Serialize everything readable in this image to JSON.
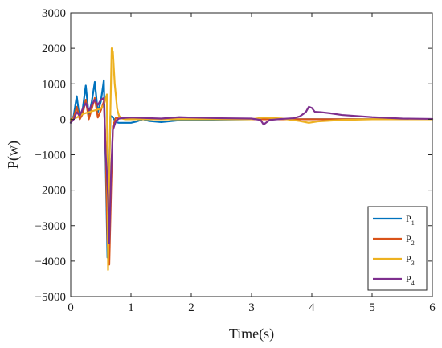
{
  "chart_data": {
    "type": "line",
    "xlabel": "Time(s)",
    "ylabel": "P(w)",
    "xlim": [
      0,
      6
    ],
    "ylim": [
      -5000,
      3000
    ],
    "xticks": [
      0,
      1,
      2,
      3,
      4,
      5,
      6
    ],
    "xtick_labels": [
      "0",
      "1",
      "2",
      "3",
      "4",
      "5",
      "6"
    ],
    "yticks": [
      3000,
      2000,
      1000,
      0,
      -1000,
      -2000,
      -3000,
      -4000,
      -5000
    ],
    "ytick_labels": [
      "3000",
      "2000",
      "1000",
      "0",
      "−1000",
      "−2000",
      "−3000",
      "−4000",
      "−5000"
    ],
    "grid": false,
    "legend_position": "bottom-right",
    "series": [
      {
        "name": "P1",
        "label_main": "P",
        "label_sub": "1",
        "color": "#0072BD",
        "x": [
          0,
          0.05,
          0.1,
          0.15,
          0.2,
          0.25,
          0.3,
          0.35,
          0.4,
          0.45,
          0.5,
          0.55,
          0.58,
          0.61,
          0.63,
          0.66,
          0.7,
          0.75,
          0.8,
          0.9,
          1.0,
          1.1,
          1.2,
          1.3,
          1.5,
          1.8,
          2.0,
          2.5,
          3.0,
          3.5,
          4.0,
          4.5,
          5.0,
          6.0
        ],
        "y": [
          -100,
          100,
          650,
          0,
          300,
          950,
          100,
          500,
          1050,
          200,
          500,
          1100,
          -1200,
          -3900,
          -2000,
          100,
          50,
          -80,
          -100,
          -100,
          -100,
          -60,
          0,
          -50,
          -80,
          -30,
          -20,
          -10,
          0,
          0,
          0,
          0,
          0,
          0
        ]
      },
      {
        "name": "P2",
        "label_main": "P",
        "label_sub": "2",
        "color": "#D95319",
        "x": [
          0,
          0.05,
          0.1,
          0.15,
          0.2,
          0.25,
          0.3,
          0.35,
          0.4,
          0.45,
          0.5,
          0.55,
          0.58,
          0.61,
          0.64,
          0.67,
          0.7,
          0.75,
          0.8,
          0.9,
          1.0,
          1.5,
          2.0,
          2.5,
          3.0,
          4.0,
          5.0,
          6.0
        ],
        "y": [
          -50,
          50,
          350,
          0,
          150,
          550,
          0,
          300,
          600,
          50,
          250,
          500,
          -800,
          -3400,
          -4100,
          -2000,
          -200,
          50,
          20,
          30,
          0,
          0,
          0,
          0,
          0,
          0,
          0,
          0
        ]
      },
      {
        "name": "P3",
        "label_main": "P",
        "label_sub": "3",
        "color": "#EDB120",
        "x": [
          0,
          0.1,
          0.2,
          0.3,
          0.4,
          0.5,
          0.55,
          0.6,
          0.62,
          0.65,
          0.68,
          0.7,
          0.73,
          0.77,
          0.8,
          0.85,
          0.9,
          1.0,
          1.5,
          2.0,
          2.5,
          3.0,
          3.2,
          3.5,
          3.8,
          3.95,
          4.1,
          4.5,
          5.0,
          5.5,
          6.0
        ],
        "y": [
          0,
          50,
          150,
          200,
          250,
          300,
          400,
          700,
          -4250,
          -500,
          2000,
          1900,
          1000,
          300,
          100,
          20,
          0,
          0,
          0,
          0,
          0,
          0,
          50,
          20,
          -50,
          -100,
          -60,
          -20,
          0,
          0,
          0
        ]
      },
      {
        "name": "P4",
        "label_main": "P",
        "label_sub": "4",
        "color": "#7E2F8E",
        "x": [
          0,
          0.05,
          0.1,
          0.15,
          0.2,
          0.25,
          0.3,
          0.35,
          0.4,
          0.45,
          0.5,
          0.55,
          0.58,
          0.6,
          0.62,
          0.64,
          0.67,
          0.7,
          0.75,
          0.8,
          0.85,
          0.9,
          1.0,
          1.5,
          1.8,
          2.0,
          2.5,
          3.0,
          3.15,
          3.2,
          3.3,
          3.5,
          3.7,
          3.8,
          3.9,
          3.95,
          4.0,
          4.05,
          4.15,
          4.3,
          4.5,
          5.0,
          5.5,
          6.0
        ],
        "y": [
          -100,
          0,
          200,
          100,
          300,
          450,
          250,
          400,
          550,
          400,
          550,
          600,
          -1000,
          -1500,
          -2200,
          -3500,
          -1500,
          -300,
          -50,
          20,
          30,
          40,
          50,
          20,
          60,
          50,
          30,
          20,
          -20,
          -150,
          -20,
          10,
          30,
          80,
          200,
          350,
          320,
          210,
          200,
          170,
          120,
          60,
          20,
          10
        ]
      }
    ]
  }
}
